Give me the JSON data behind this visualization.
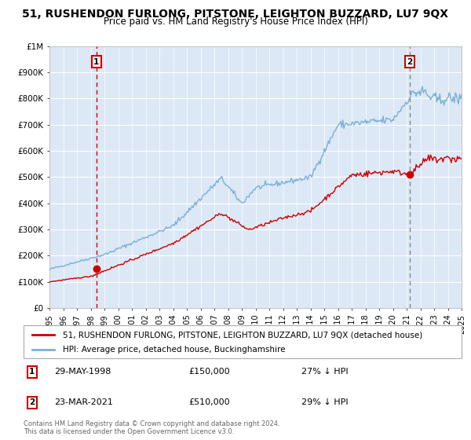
{
  "title": "51, RUSHENDON FURLONG, PITSTONE, LEIGHTON BUZZARD, LU7 9QX",
  "subtitle": "Price paid vs. HM Land Registry's House Price Index (HPI)",
  "ylim": [
    0,
    1000000
  ],
  "yticks": [
    0,
    100000,
    200000,
    300000,
    400000,
    500000,
    600000,
    700000,
    800000,
    900000,
    1000000
  ],
  "ytick_labels": [
    "£0",
    "£100K",
    "£200K",
    "£300K",
    "£400K",
    "£500K",
    "£600K",
    "£700K",
    "£800K",
    "£900K",
    "£1M"
  ],
  "x_start_year": 1995,
  "x_end_year": 2025,
  "sale1_year": 1998.42,
  "sale1_value": 150000,
  "sale1_label": "1",
  "sale1_date": "29-MAY-1998",
  "sale1_price": "£150,000",
  "sale1_hpi": "27% ↓ HPI",
  "sale2_year": 2021.22,
  "sale2_value": 510000,
  "sale2_label": "2",
  "sale2_date": "23-MAR-2021",
  "sale2_price": "£510,000",
  "sale2_hpi": "29% ↓ HPI",
  "red_line_color": "#cc0000",
  "blue_line_color": "#7ab0d4",
  "background_color": "#dce8f5",
  "grid_color": "#ffffff",
  "marker_color": "#cc0000",
  "vline1_color": "#cc0000",
  "vline2_color": "#888888",
  "legend_label_red": "51, RUSHENDON FURLONG, PITSTONE, LEIGHTON BUZZARD, LU7 9QX (detached house)",
  "legend_label_blue": "HPI: Average price, detached house, Buckinghamshire",
  "footnote": "Contains HM Land Registry data © Crown copyright and database right 2024.\nThis data is licensed under the Open Government Licence v3.0.",
  "title_fontsize": 10,
  "subtitle_fontsize": 8.5,
  "tick_fontsize": 7.5,
  "legend_fontsize": 7.5
}
